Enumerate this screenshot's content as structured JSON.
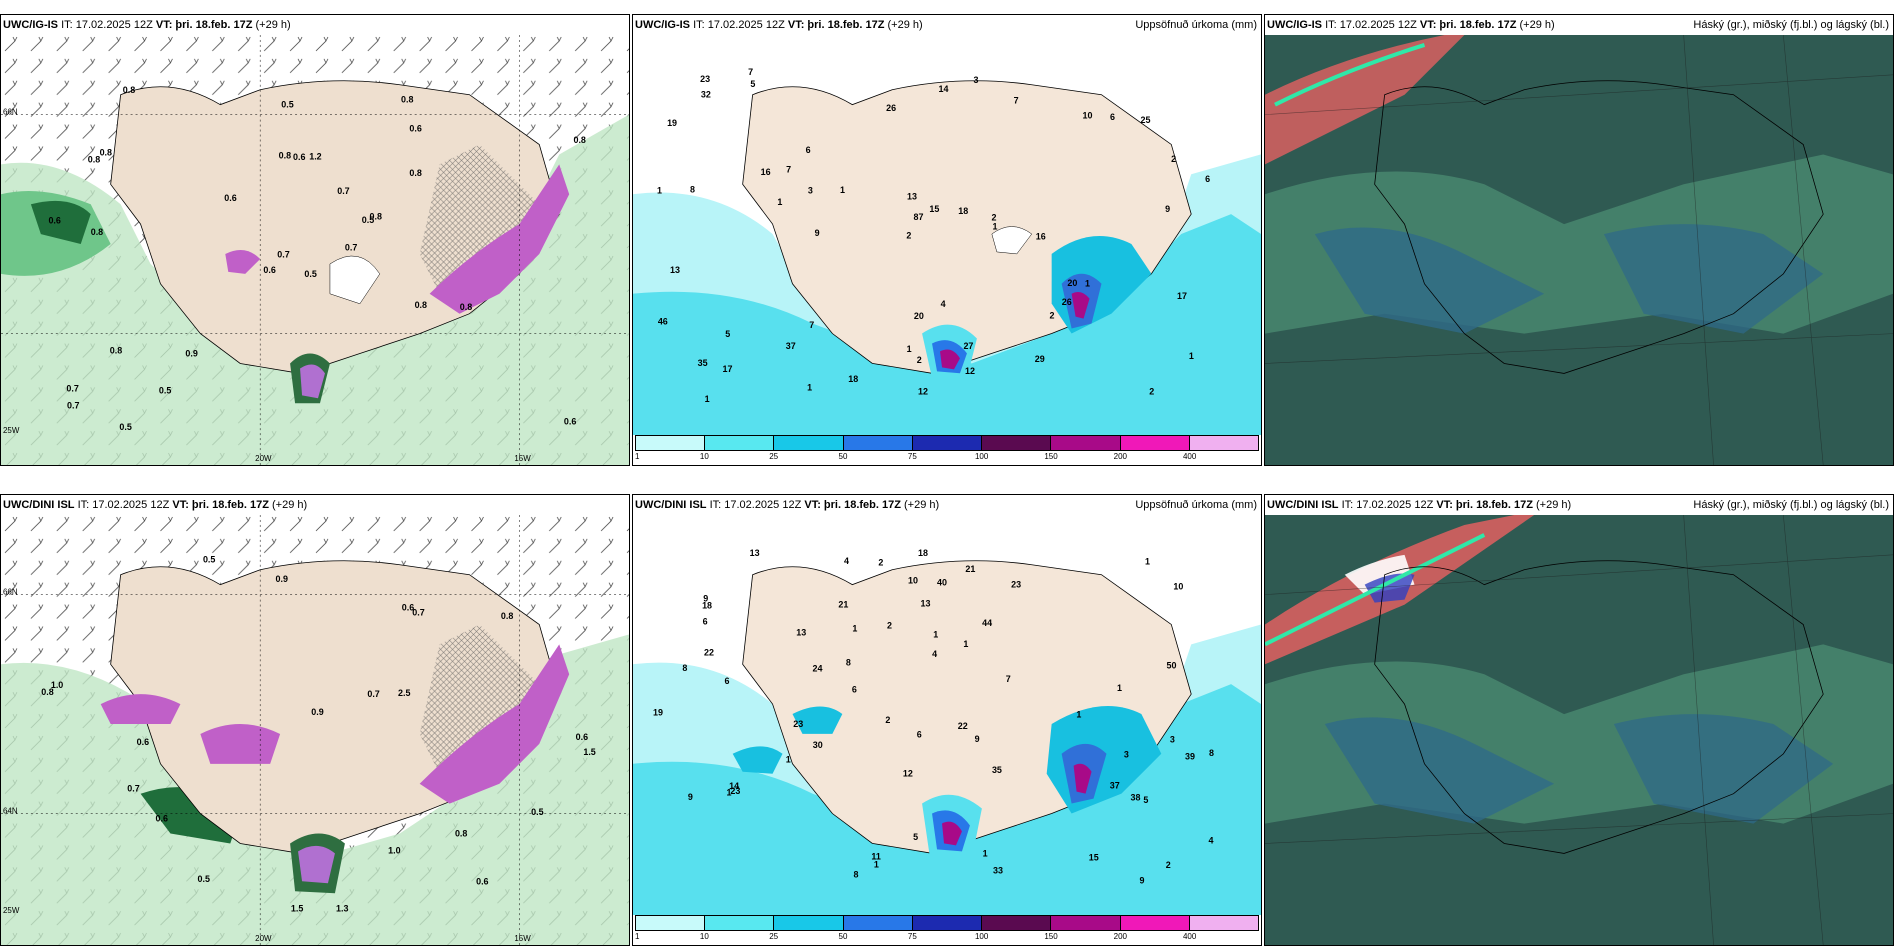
{
  "panels": [
    {
      "model": "UWC/IG-IS",
      "it": "IT: 17.02.2025 12Z",
      "vt": "VT: þri. 18.feb. 17Z",
      "lead": "(+29 h)",
      "product": ""
    },
    {
      "model": "UWC/IG-IS",
      "it": "IT: 17.02.2025 12Z",
      "vt": "VT: þri. 18.feb. 17Z",
      "lead": "(+29 h)",
      "product": "Uppsöfnuð úrkoma (mm)"
    },
    {
      "model": "UWC/IG-IS",
      "it": "IT: 17.02.2025 12Z",
      "vt": "VT: þri. 18.feb. 17Z",
      "lead": "(+29 h)",
      "product": "Háský (gr.), miðský (fj.bl.) og lágský (bl.)"
    },
    {
      "model": "UWC/DINI ISL",
      "it": "IT: 17.02.2025 12Z",
      "vt": "VT: þri. 18.feb. 17Z",
      "lead": "(+29 h)",
      "product": ""
    },
    {
      "model": "UWC/DINI ISL",
      "it": "IT: 17.02.2025 12Z",
      "vt": "VT: þri. 18.feb. 17Z",
      "lead": "(+29 h)",
      "product": "Uppsöfnuð úrkoma (mm)"
    },
    {
      "model": "UWC/DINI ISL",
      "it": "IT: 17.02.2025 12Z",
      "vt": "VT: þri. 18.feb. 17Z",
      "lead": "(+29 h)",
      "product": "Háský (gr.), miðský (fj.bl.) og lágský (bl.)"
    }
  ],
  "axis_labels": {
    "lat_top": "66N",
    "lat_mid": "64N",
    "lat_bot": "25W",
    "lon_left": "20W",
    "lon_right": "15W"
  },
  "legend": {
    "ticks": [
      "1",
      "10",
      "25",
      "50",
      "75",
      "100",
      "150",
      "200",
      "400"
    ],
    "colors": [
      "#c8fafa",
      "#58e8f0",
      "#18c8e8",
      "#2878e8",
      "#1c2ab0",
      "#5a0a50",
      "#a80a88",
      "#f018b8",
      "#f0b0f0"
    ]
  },
  "precip_labels": {
    "top": [
      "6",
      "2",
      "1",
      "87",
      "6",
      "10",
      "7",
      "2",
      "1",
      "1",
      "3",
      "1",
      "1",
      "2",
      "1",
      "1",
      "2",
      "1",
      "2",
      "1",
      "5",
      "2",
      "19",
      "26",
      "29",
      "37",
      "5",
      "23",
      "27",
      "25",
      "14",
      "9",
      "8",
      "7",
      "6",
      "7",
      "7",
      "26",
      "15",
      "46",
      "20",
      "18",
      "20",
      "3",
      "35",
      "32",
      "16",
      "13",
      "13",
      "12",
      "18",
      "17",
      "16",
      "17",
      "12",
      "9",
      "4"
    ],
    "bottom": [
      "6",
      "3",
      "18",
      "1",
      "2",
      "4",
      "9",
      "6",
      "10",
      "2",
      "2",
      "1",
      "1",
      "1",
      "1",
      "1",
      "1",
      "2",
      "1",
      "1",
      "6",
      "23",
      "33",
      "24",
      "21",
      "39",
      "37",
      "30",
      "14",
      "8",
      "8",
      "9",
      "6",
      "38",
      "22",
      "7",
      "9",
      "11",
      "15",
      "5",
      "10",
      "50",
      "13",
      "8",
      "8",
      "3",
      "21",
      "13",
      "4",
      "23",
      "44",
      "35",
      "40",
      "19",
      "18",
      "23",
      "22",
      "12",
      "4",
      "13",
      "9",
      "5",
      "1"
    ]
  },
  "wind_labels": {
    "top": [
      "0.5",
      "0.8",
      "0.7",
      "0.7",
      "0.5",
      "0.9",
      "0.8",
      "1.2",
      "0.6",
      "0.7",
      "0.8",
      "0.6",
      "0.8",
      "0.8",
      "0.6",
      "0.8",
      "0.5",
      "0.8",
      "0.7",
      "0.8",
      "0.6",
      "0.7",
      "0.5",
      "0.6",
      "0.8",
      "0.8",
      "0.8",
      "0.5",
      "0.6",
      "0.8"
    ],
    "bottom": [
      "0.6",
      "1.3",
      "1.0",
      "0.9",
      "1.5",
      "2.5",
      "0.8",
      "0.9",
      "0.5",
      "1.0",
      "1.5",
      "0.6",
      "0.7",
      "0.6",
      "0.5",
      "0.6",
      "0.8",
      "0.7",
      "0.6",
      "0.5",
      "0.7",
      "0.8"
    ]
  }
}
